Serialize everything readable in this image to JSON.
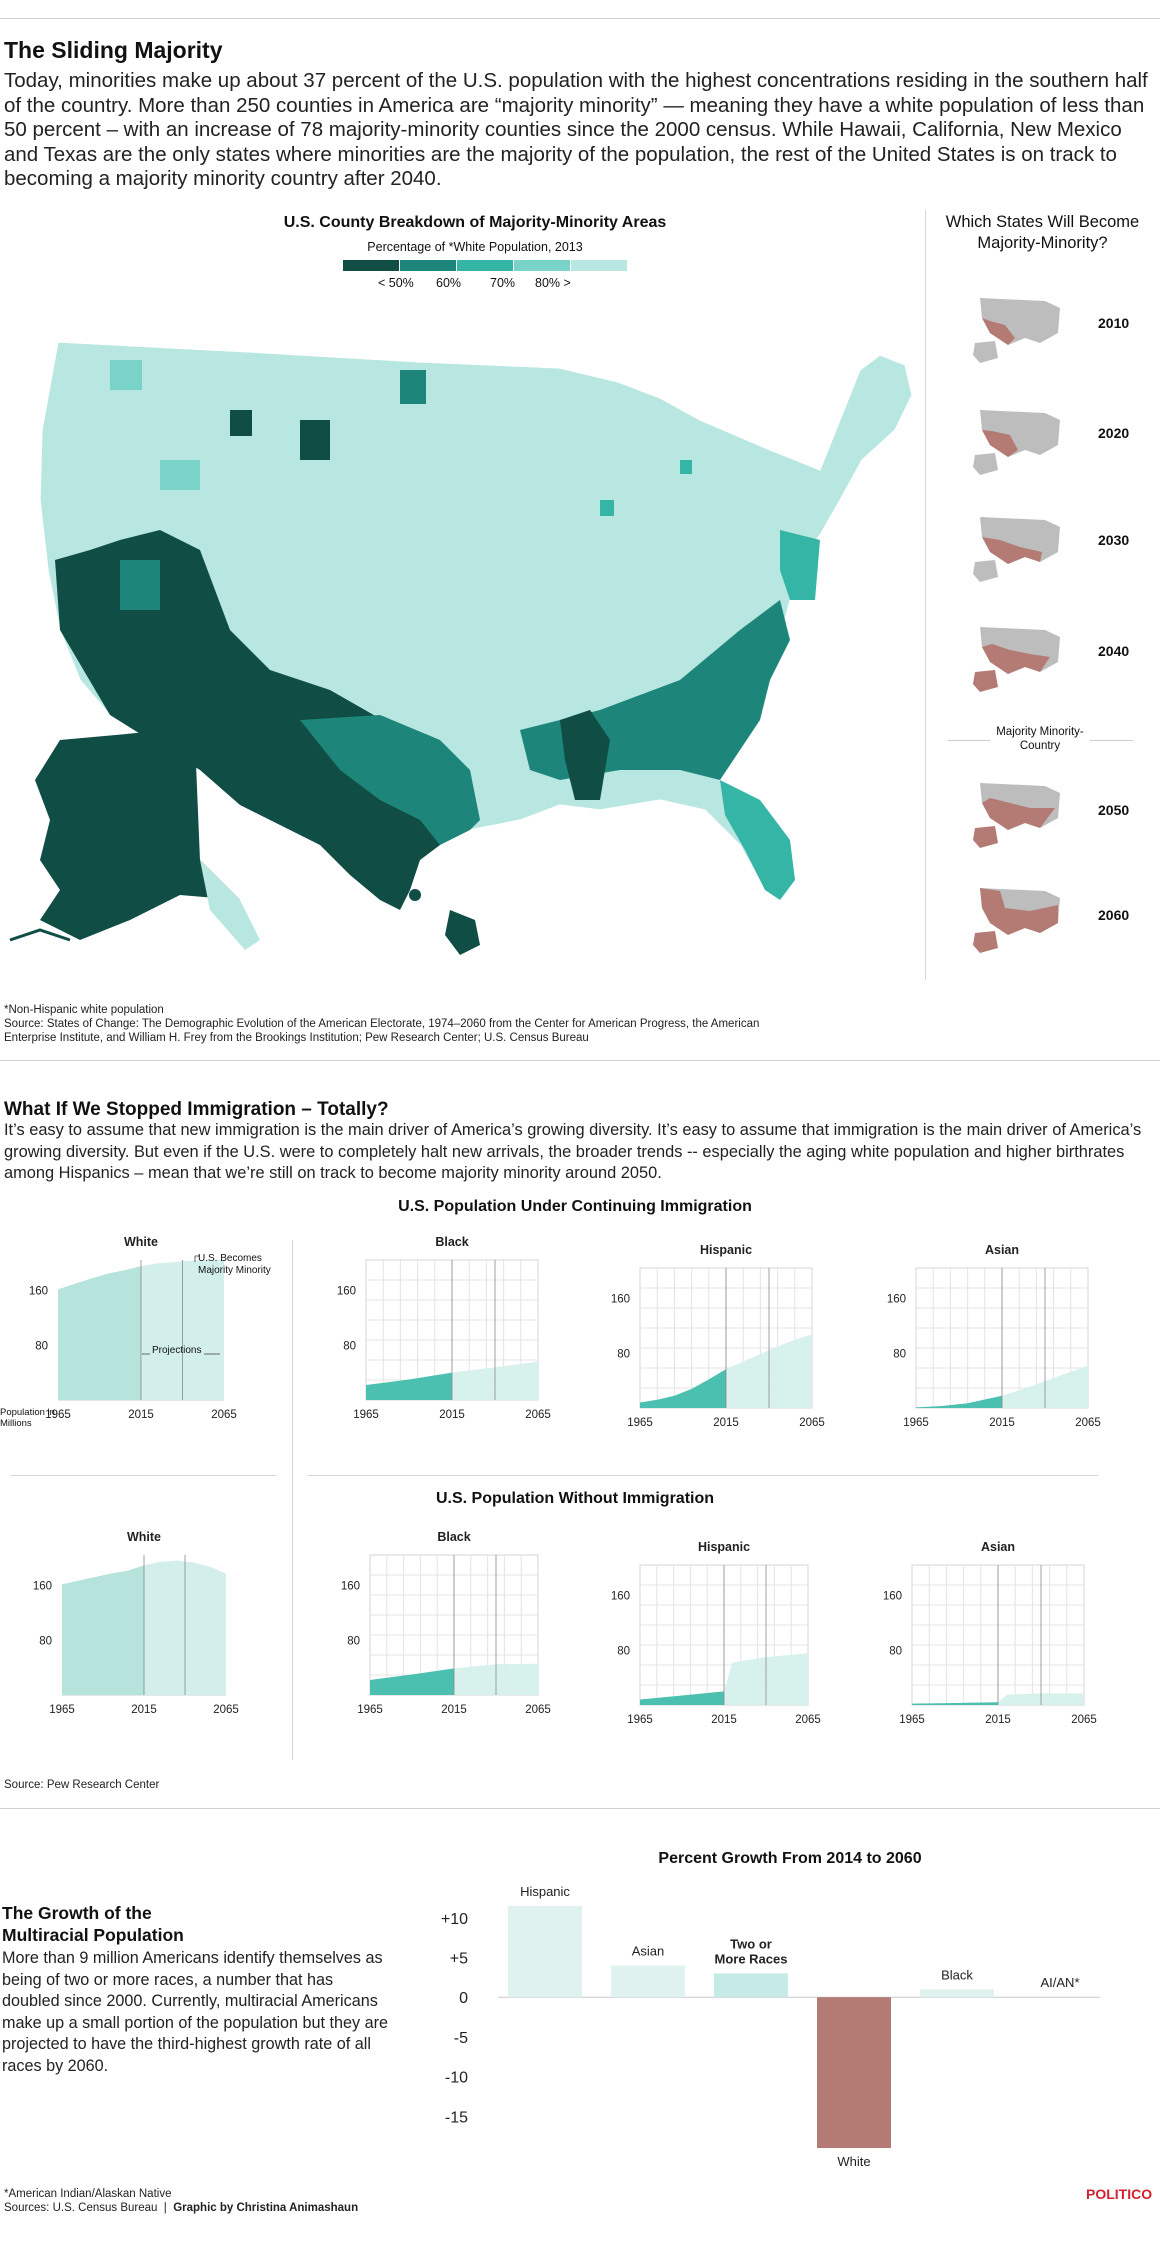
{
  "section1": {
    "title": "The Sliding Majority",
    "intro": "Today, minorities make up about 37 percent of the U.S. population with the highest concentrations residing in the southern half of the country. More than 250 counties in America are “majority minority” —  meaning they have a white population of less than 50 percent – with an increase of 78 majority-minority counties since the 2000 census. While Hawaii, California, New Mexico and Texas are the only states where minorities are the majority of the population, the rest of the United States is on track to becoming a majority minority country after 2040.",
    "map_title": "U.S. County Breakdown of Majority-Minority Areas",
    "legend_title": "Percentage of *White Population, 2013",
    "legend_labels": [
      "< 50%",
      "60%",
      "70%",
      "80% >"
    ],
    "legend_colors": [
      "#0f4d45",
      "#1e857a",
      "#35b5a6",
      "#7ad3c8",
      "#b8e6e0"
    ],
    "side_title": "Which States Will Become Majority-Minority?",
    "years": [
      "2010",
      "2020",
      "2030",
      "2040",
      "2050",
      "2060"
    ],
    "divider_label": "Majority Minority- Country",
    "footnote": "*Non-Hispanic white population",
    "source": "Source: States of Change: The Demographic Evolution of the American Electorate, 1974–2060 from the Center for American Progress, the American Enterprise Institute, and William H. Frey from the Brookings Institution; Pew Research Center; U.S. Census Bureau"
  },
  "section2": {
    "title": "What If We Stopped Immigration – Totally?",
    "intro": "It’s easy to assume that new immigration is the main driver of America’s growing diversity. It’s easy to assume that immigration is the main driver of America’s growing diversity. But even if the U.S. were to completely halt new arrivals, the broader trends -- especially the aging white population and higher birthrates among Hispanics – mean that we’re still on track to become majority minority around 2050.",
    "heading_continuing": "U.S. Population Under Continuing Immigration",
    "heading_without": "U.S. Population Without Immigration",
    "majority_note": "U.S. Becomes Majority Minority",
    "projections_label": "Projections",
    "ylabel": "Population in Millions",
    "source": "Source: Pew Research Center"
  },
  "chart_data": [
    {
      "type": "area",
      "title": "White",
      "group": "U.S. Population Under Continuing Immigration",
      "x": [
        1965,
        1975,
        1985,
        1995,
        2005,
        2015,
        2025,
        2035,
        2045,
        2055,
        2065
      ],
      "y": [
        162,
        170,
        178,
        185,
        190,
        196,
        200,
        202,
        204,
        205,
        205
      ],
      "projection_start": 2015,
      "marker": 2040,
      "xticks": [
        "1965",
        "2015",
        "2065"
      ],
      "yticks": [
        "80",
        "160"
      ],
      "ylim": [
        0,
        205
      ]
    },
    {
      "type": "area",
      "title": "Black",
      "group": "U.S. Population Under Continuing Immigration",
      "x": [
        1965,
        1990,
        2015,
        2040,
        2065
      ],
      "y": [
        22,
        30,
        40,
        48,
        56
      ],
      "projection_start": 2015,
      "marker": 2040,
      "xticks": [
        "1965",
        "2015",
        "2065"
      ],
      "yticks": [
        "80",
        "160"
      ],
      "ylim": [
        0,
        205
      ]
    },
    {
      "type": "area",
      "title": "Hispanic",
      "group": "U.S. Population Under Continuing Immigration",
      "x": [
        1965,
        1975,
        1985,
        1995,
        2005,
        2015,
        2025,
        2035,
        2045,
        2055,
        2065
      ],
      "y": [
        8,
        12,
        18,
        28,
        42,
        57,
        68,
        79,
        90,
        100,
        108
      ],
      "projection_start": 2015,
      "marker": 2040,
      "xticks": [
        "1965",
        "2015",
        "2065"
      ],
      "yticks": [
        "80",
        "160"
      ],
      "ylim": [
        0,
        205
      ]
    },
    {
      "type": "area",
      "title": "Asian",
      "group": "U.S. Population Under Continuing Immigration",
      "x": [
        1965,
        1980,
        1995,
        2015,
        2030,
        2045,
        2065
      ],
      "y": [
        1,
        3,
        7,
        18,
        30,
        44,
        62
      ],
      "projection_start": 2015,
      "marker": 2040,
      "xticks": [
        "1965",
        "2015",
        "2065"
      ],
      "yticks": [
        "80",
        "160"
      ],
      "ylim": [
        0,
        205
      ]
    },
    {
      "type": "area",
      "title": "White",
      "group": "U.S. Population Without Immigration",
      "x": [
        1965,
        1980,
        1995,
        2005,
        2015,
        2025,
        2035,
        2045,
        2055,
        2065
      ],
      "y": [
        162,
        170,
        178,
        182,
        190,
        195,
        197,
        194,
        188,
        178
      ],
      "projection_start": 2015,
      "marker": 2040,
      "xticks": [
        "1965",
        "2015",
        "2065"
      ],
      "yticks": [
        "80",
        "160"
      ],
      "ylim": [
        0,
        205
      ]
    },
    {
      "type": "area",
      "title": "Black",
      "group": "U.S. Population Without Immigration",
      "x": [
        1965,
        1990,
        2015,
        2040,
        2065
      ],
      "y": [
        22,
        30,
        39,
        45,
        46
      ],
      "projection_start": 2015,
      "marker": 2040,
      "xticks": [
        "1965",
        "2015",
        "2065"
      ],
      "yticks": [
        "80",
        "160"
      ],
      "ylim": [
        0,
        205
      ]
    },
    {
      "type": "area",
      "title": "Hispanic",
      "group": "U.S. Population Without Immigration",
      "x": [
        1965,
        1990,
        2015,
        2020,
        2040,
        2065
      ],
      "y": [
        8,
        14,
        20,
        62,
        70,
        76
      ],
      "projection_start": 2015,
      "marker": 2040,
      "xticks": [
        "1965",
        "2015",
        "2065"
      ],
      "yticks": [
        "80",
        "160"
      ],
      "ylim": [
        0,
        205
      ]
    },
    {
      "type": "area",
      "title": "Asian",
      "group": "U.S. Population Without Immigration",
      "x": [
        1965,
        1990,
        2015,
        2020,
        2040,
        2065
      ],
      "y": [
        2,
        3,
        4,
        15,
        17,
        17
      ],
      "projection_start": 2015,
      "marker": 2040,
      "xticks": [
        "1965",
        "2015",
        "2065"
      ],
      "yticks": [
        "80",
        "160"
      ],
      "ylim": [
        0,
        205
      ]
    },
    {
      "type": "bar",
      "title": "Percent Growth From 2014 to 2060",
      "categories": [
        "Hispanic",
        "Asian",
        "Two or More Races",
        "White",
        "Black",
        "AI/AN*"
      ],
      "values": [
        11.5,
        4,
        3,
        -19,
        1,
        0
      ],
      "yticks": [
        "+10",
        "+5",
        "0",
        "-5",
        "-10",
        "-15"
      ],
      "ylim": [
        -19.5,
        12.5
      ],
      "colors": [
        "#dff2f0",
        "#dff2f0",
        "#c6ebe6",
        "#b37b74",
        "#dff2f0",
        "#dff2f0"
      ]
    }
  ],
  "section3": {
    "title": "The Growth of the Multiracial Population",
    "body": "More than 9 million Americans identify themselves as being of two or more races, a number that has doubled since 2000. Currently, multiracial Americans make up a small portion of the population but they are projected to have the third-highest growth rate of all races by 2060.",
    "footnote": "*American Indian/Alaskan Native",
    "sources": "Sources: U.S. Census Bureau",
    "credit": "Graphic by Christina Animashaun",
    "brand": "POLITICO"
  },
  "colors": {
    "accent": "#1fa797",
    "light": "#cfeeea",
    "lighter": "#e3f5f2",
    "dark": "#0f4d45",
    "minority": "#b37b74",
    "gray": "#bdbdbd",
    "brand": "#d2212f"
  }
}
